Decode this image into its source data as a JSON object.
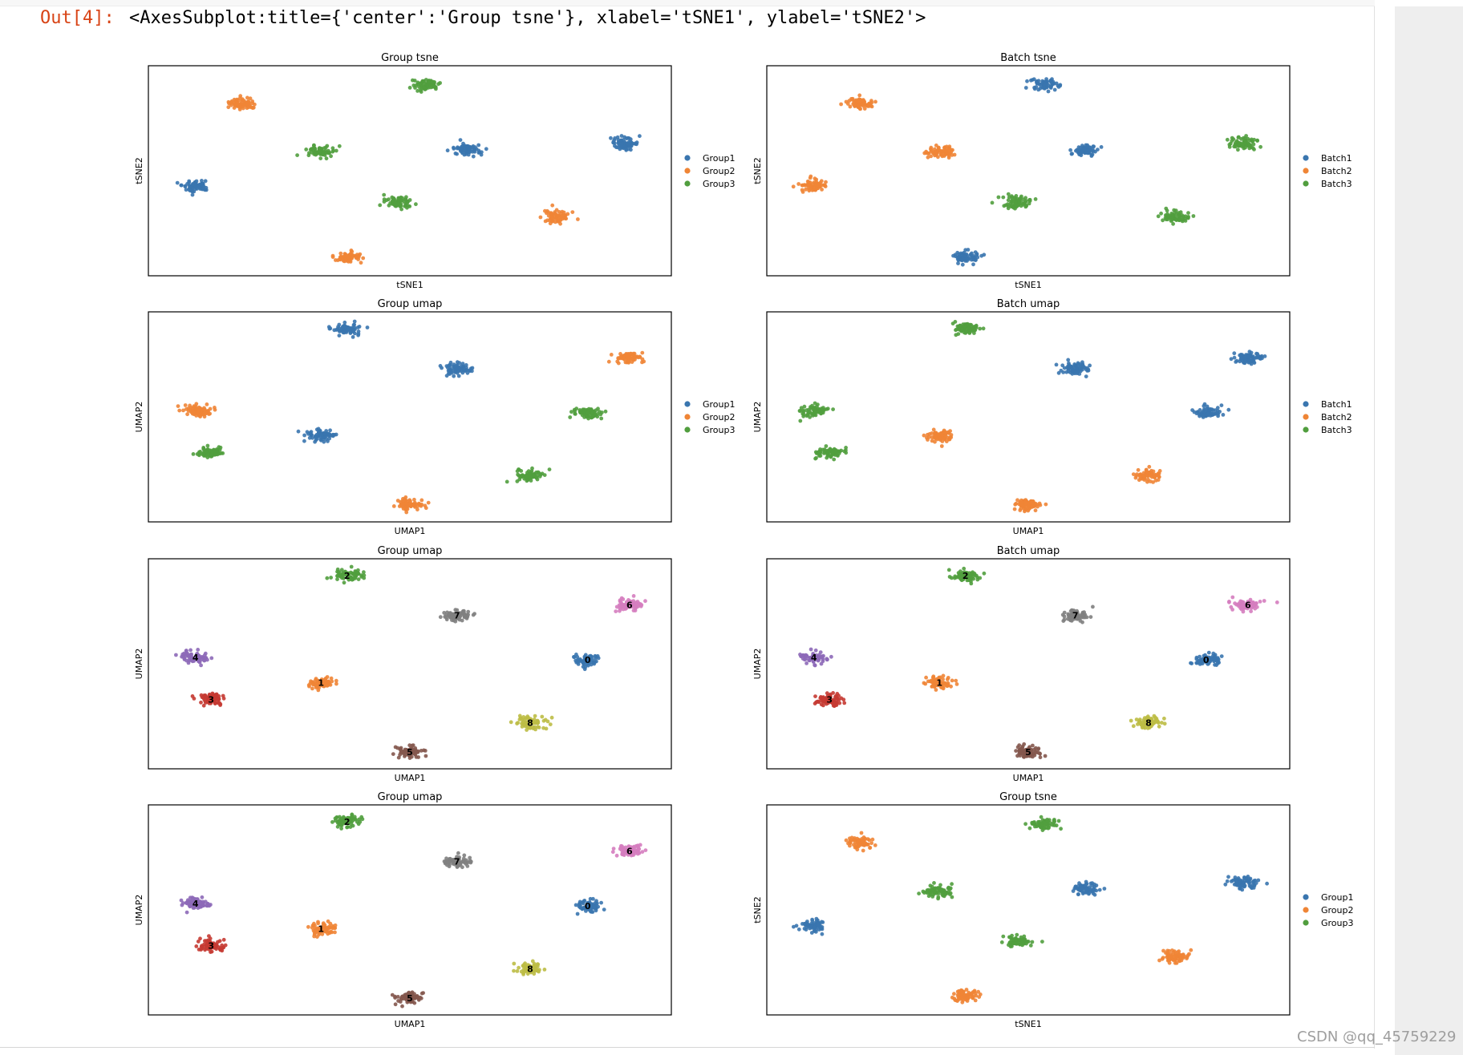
{
  "output": {
    "prompt": "Out[4]:",
    "text": "<AxesSubplot:title={'center':'Group tsne'}, xlabel='tSNE1', ylabel='tSNE2'>"
  },
  "watermark": "CSDN @qq_45759229",
  "colors": {
    "tab_blue": "#3a76af",
    "tab_orange": "#ef8536",
    "tab_green": "#519e3e",
    "tab_red": "#c53a32",
    "tab_purple": "#8d69b8",
    "tab_brown": "#84584e",
    "tab_pink": "#d57dbf",
    "tab_gray": "#7f7f7f",
    "tab_olive": "#bcbd45"
  },
  "chart_data": [
    {
      "type": "scatter",
      "title": "Group tsne",
      "xlabel": "tSNE1",
      "ylabel": "tSNE2",
      "legend": [
        "Group1",
        "Group2",
        "Group3"
      ],
      "legend_placement": "right",
      "xlim": [
        0,
        100
      ],
      "ylim": [
        0,
        100
      ],
      "grid": false,
      "clusters": [
        {
          "x": 18,
          "y": 82,
          "series": 1
        },
        {
          "x": 53,
          "y": 91,
          "series": 2
        },
        {
          "x": 33,
          "y": 59,
          "series": 2
        },
        {
          "x": 61,
          "y": 60,
          "series": 0
        },
        {
          "x": 91,
          "y": 63,
          "series": 0
        },
        {
          "x": 9,
          "y": 43,
          "series": 0
        },
        {
          "x": 48,
          "y": 35,
          "series": 2
        },
        {
          "x": 78,
          "y": 28,
          "series": 1
        },
        {
          "x": 38,
          "y": 9,
          "series": 1
        }
      ]
    },
    {
      "type": "scatter",
      "title": "Batch tsne",
      "xlabel": "tSNE1",
      "ylabel": "tSNE2",
      "legend": [
        "Batch1",
        "Batch2",
        "Batch3"
      ],
      "legend_placement": "right",
      "xlim": [
        0,
        100
      ],
      "ylim": [
        0,
        100
      ],
      "grid": false,
      "clusters": [
        {
          "x": 18,
          "y": 82,
          "series": 1
        },
        {
          "x": 53,
          "y": 91,
          "series": 0
        },
        {
          "x": 33,
          "y": 59,
          "series": 1
        },
        {
          "x": 61,
          "y": 60,
          "series": 0
        },
        {
          "x": 91,
          "y": 63,
          "series": 2
        },
        {
          "x": 9,
          "y": 43,
          "series": 1
        },
        {
          "x": 48,
          "y": 35,
          "series": 2
        },
        {
          "x": 78,
          "y": 28,
          "series": 2
        },
        {
          "x": 38,
          "y": 9,
          "series": 0
        }
      ]
    },
    {
      "type": "scatter",
      "title": "Group umap",
      "xlabel": "UMAP1",
      "ylabel": "UMAP2",
      "legend": [
        "Group1",
        "Group2",
        "Group3"
      ],
      "legend_placement": "right",
      "xlim": [
        0,
        100
      ],
      "ylim": [
        0,
        100
      ],
      "grid": false,
      "clusters": [
        {
          "x": 38,
          "y": 92,
          "series": 0
        },
        {
          "x": 59,
          "y": 73,
          "series": 0
        },
        {
          "x": 92,
          "y": 78,
          "series": 1
        },
        {
          "x": 9,
          "y": 53,
          "series": 1
        },
        {
          "x": 84,
          "y": 52,
          "series": 2
        },
        {
          "x": 33,
          "y": 41,
          "series": 0
        },
        {
          "x": 12,
          "y": 33,
          "series": 2
        },
        {
          "x": 73,
          "y": 22,
          "series": 2
        },
        {
          "x": 50,
          "y": 8,
          "series": 1
        }
      ]
    },
    {
      "type": "scatter",
      "title": "Batch umap",
      "xlabel": "UMAP1",
      "ylabel": "UMAP2",
      "legend": [
        "Batch1",
        "Batch2",
        "Batch3"
      ],
      "legend_placement": "right",
      "xlim": [
        0,
        100
      ],
      "ylim": [
        0,
        100
      ],
      "grid": false,
      "clusters": [
        {
          "x": 38,
          "y": 92,
          "series": 2
        },
        {
          "x": 59,
          "y": 73,
          "series": 0
        },
        {
          "x": 92,
          "y": 78,
          "series": 0
        },
        {
          "x": 9,
          "y": 53,
          "series": 2
        },
        {
          "x": 84,
          "y": 52,
          "series": 0
        },
        {
          "x": 33,
          "y": 41,
          "series": 1
        },
        {
          "x": 12,
          "y": 33,
          "series": 2
        },
        {
          "x": 73,
          "y": 22,
          "series": 1
        },
        {
          "x": 50,
          "y": 8,
          "series": 1
        }
      ]
    },
    {
      "type": "scatter",
      "title": "Group umap",
      "xlabel": "UMAP1",
      "ylabel": "UMAP2",
      "legend": [],
      "grid": false,
      "xlim": [
        0,
        100
      ],
      "ylim": [
        0,
        100
      ],
      "clusters": [
        {
          "x": 38,
          "y": 92,
          "label": "2",
          "color": "#519e3e"
        },
        {
          "x": 59,
          "y": 73,
          "label": "7",
          "color": "#7f7f7f"
        },
        {
          "x": 92,
          "y": 78,
          "label": "6",
          "color": "#d57dbf"
        },
        {
          "x": 9,
          "y": 53,
          "label": "4",
          "color": "#8d69b8"
        },
        {
          "x": 84,
          "y": 52,
          "label": "0",
          "color": "#3a76af"
        },
        {
          "x": 33,
          "y": 41,
          "label": "1",
          "color": "#ef8536"
        },
        {
          "x": 12,
          "y": 33,
          "label": "3",
          "color": "#c53a32"
        },
        {
          "x": 73,
          "y": 22,
          "label": "8",
          "color": "#bcbd45"
        },
        {
          "x": 50,
          "y": 8,
          "label": "5",
          "color": "#84584e"
        }
      ]
    },
    {
      "type": "scatter",
      "title": "Batch umap",
      "xlabel": "UMAP1",
      "ylabel": "UMAP2",
      "legend": [],
      "grid": false,
      "xlim": [
        0,
        100
      ],
      "ylim": [
        0,
        100
      ],
      "clusters": [
        {
          "x": 38,
          "y": 92,
          "label": "2",
          "color": "#519e3e"
        },
        {
          "x": 59,
          "y": 73,
          "label": "7",
          "color": "#7f7f7f"
        },
        {
          "x": 92,
          "y": 78,
          "label": "6",
          "color": "#d57dbf"
        },
        {
          "x": 9,
          "y": 53,
          "label": "4",
          "color": "#8d69b8"
        },
        {
          "x": 84,
          "y": 52,
          "label": "0",
          "color": "#3a76af"
        },
        {
          "x": 33,
          "y": 41,
          "label": "1",
          "color": "#ef8536"
        },
        {
          "x": 12,
          "y": 33,
          "label": "3",
          "color": "#c53a32"
        },
        {
          "x": 73,
          "y": 22,
          "label": "8",
          "color": "#bcbd45"
        },
        {
          "x": 50,
          "y": 8,
          "label": "5",
          "color": "#84584e"
        }
      ]
    },
    {
      "type": "scatter",
      "title": "Group umap",
      "xlabel": "UMAP1",
      "ylabel": "UMAP2",
      "legend": [],
      "grid": false,
      "xlim": [
        0,
        100
      ],
      "ylim": [
        0,
        100
      ],
      "clusters": [
        {
          "x": 38,
          "y": 92,
          "label": "2",
          "color": "#519e3e"
        },
        {
          "x": 59,
          "y": 73,
          "label": "7",
          "color": "#7f7f7f"
        },
        {
          "x": 92,
          "y": 78,
          "label": "6",
          "color": "#d57dbf"
        },
        {
          "x": 9,
          "y": 53,
          "label": "4",
          "color": "#8d69b8"
        },
        {
          "x": 84,
          "y": 52,
          "label": "0",
          "color": "#3a76af"
        },
        {
          "x": 33,
          "y": 41,
          "label": "1",
          "color": "#ef8536"
        },
        {
          "x": 12,
          "y": 33,
          "label": "3",
          "color": "#c53a32"
        },
        {
          "x": 73,
          "y": 22,
          "label": "8",
          "color": "#bcbd45"
        },
        {
          "x": 50,
          "y": 8,
          "label": "5",
          "color": "#84584e"
        }
      ]
    },
    {
      "type": "scatter",
      "title": "Group tsne",
      "xlabel": "tSNE1",
      "ylabel": "tSNE2",
      "legend": [
        "Group1",
        "Group2",
        "Group3"
      ],
      "legend_placement": "right",
      "xlim": [
        0,
        100
      ],
      "ylim": [
        0,
        100
      ],
      "grid": false,
      "clusters": [
        {
          "x": 18,
          "y": 82,
          "series": 1
        },
        {
          "x": 53,
          "y": 91,
          "series": 2
        },
        {
          "x": 33,
          "y": 59,
          "series": 2
        },
        {
          "x": 61,
          "y": 60,
          "series": 0
        },
        {
          "x": 91,
          "y": 63,
          "series": 0
        },
        {
          "x": 9,
          "y": 43,
          "series": 0
        },
        {
          "x": 48,
          "y": 35,
          "series": 2
        },
        {
          "x": 78,
          "y": 28,
          "series": 1
        },
        {
          "x": 38,
          "y": 9,
          "series": 1
        }
      ]
    }
  ]
}
